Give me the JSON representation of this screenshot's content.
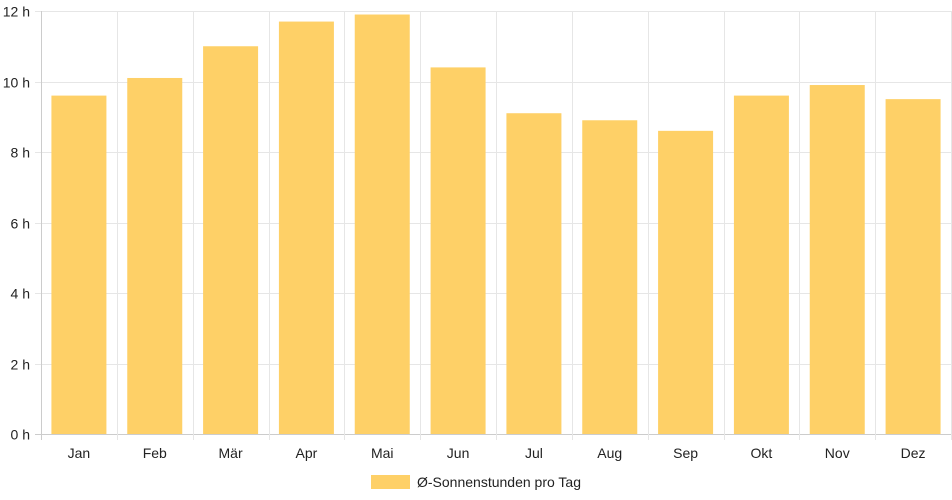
{
  "chart_data": {
    "type": "bar",
    "categories": [
      "Jan",
      "Feb",
      "Mär",
      "Apr",
      "Mai",
      "Jun",
      "Jul",
      "Aug",
      "Sep",
      "Okt",
      "Nov",
      "Dez"
    ],
    "series": [
      {
        "name": "Ø-Sonnenstunden pro Tag",
        "values": [
          9.6,
          10.1,
          11.0,
          11.7,
          11.9,
          10.4,
          9.1,
          8.9,
          8.6,
          9.6,
          9.9,
          9.5
        ]
      }
    ],
    "ylim": [
      0,
      12
    ],
    "y_ticks": [
      0,
      2,
      4,
      6,
      8,
      10,
      12
    ],
    "y_unit": "h",
    "grid": true,
    "legend": "bottom-center",
    "colors": {
      "bar": "#fed067",
      "grid": "#e6e6e6",
      "axis": "#cccccc",
      "text": "#222222"
    }
  }
}
